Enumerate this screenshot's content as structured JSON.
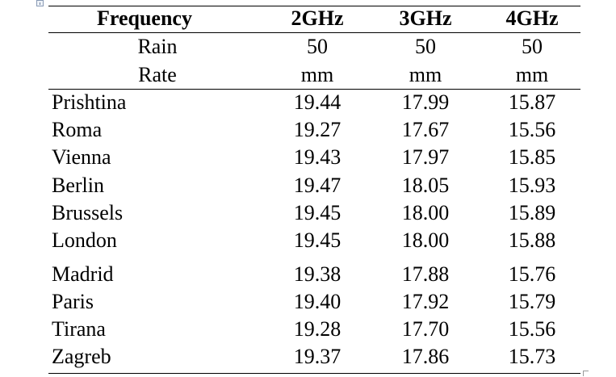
{
  "table": {
    "header": {
      "col0": "Frequency",
      "col1": "2GHz",
      "col2": "3GHz",
      "col3": "4GHz"
    },
    "subheader": {
      "line1": [
        "Rain",
        "50",
        "50",
        "50"
      ],
      "line2": [
        "Rate",
        "mm",
        "mm",
        "mm"
      ]
    },
    "rows": [
      {
        "city": "Prishtina",
        "v2": "19.44",
        "v3": "17.99",
        "v4": "15.87"
      },
      {
        "city": "Roma",
        "v2": "19.27",
        "v3": "17.67",
        "v4": "15.56"
      },
      {
        "city": "Vienna",
        "v2": "19.43",
        "v3": "17.97",
        "v4": "15.85"
      },
      {
        "city": "Berlin",
        "v2": "19.47",
        "v3": "18.05",
        "v4": "15.93"
      },
      {
        "city": "Brussels",
        "v2": "19.45",
        "v3": "18.00",
        "v4": "15.89"
      },
      {
        "city": "London",
        "v2": "19.45",
        "v3": "18.00",
        "v4": "15.88"
      },
      {
        "city": "Madrid",
        "v2": "19.38",
        "v3": "17.88",
        "v4": "15.76"
      },
      {
        "city": "Paris",
        "v2": "19.40",
        "v3": "17.92",
        "v4": "15.79"
      },
      {
        "city": "Tirana",
        "v2": "19.28",
        "v3": "17.70",
        "v4": "15.56"
      },
      {
        "city": "Zagreb",
        "v2": "19.37",
        "v3": "17.86",
        "v4": "15.73"
      }
    ]
  }
}
